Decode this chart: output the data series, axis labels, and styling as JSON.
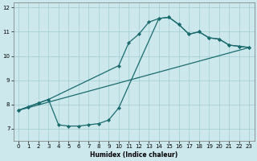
{
  "title": "",
  "xlabel": "Humidex (Indice chaleur)",
  "bg_color": "#cce8ec",
  "grid_color": "#a0ccd0",
  "line_color": "#1a6b6e",
  "xlim": [
    -0.5,
    23.5
  ],
  "ylim": [
    6.5,
    12.2
  ],
  "xticks": [
    0,
    1,
    2,
    3,
    4,
    5,
    6,
    7,
    8,
    9,
    10,
    11,
    12,
    13,
    14,
    15,
    16,
    17,
    18,
    19,
    20,
    21,
    22,
    23
  ],
  "yticks": [
    7,
    8,
    9,
    10,
    11,
    12
  ],
  "line_straight": {
    "x": [
      0,
      23
    ],
    "y": [
      7.75,
      10.35
    ]
  },
  "line_curve": {
    "x": [
      0,
      1,
      2,
      3,
      10,
      11,
      12,
      13,
      14,
      15,
      16,
      17,
      18,
      19,
      20,
      21,
      22,
      23
    ],
    "y": [
      7.75,
      7.9,
      8.05,
      8.2,
      9.6,
      10.55,
      10.9,
      11.4,
      11.55,
      11.6,
      11.3,
      10.9,
      11.0,
      10.75,
      10.7,
      10.45,
      10.4,
      10.35
    ]
  },
  "line_zigzag": {
    "x": [
      0,
      1,
      2,
      3,
      4,
      5,
      6,
      7,
      8,
      9,
      10,
      14,
      15,
      16,
      17,
      18,
      19,
      20,
      21,
      22,
      23
    ],
    "y": [
      7.75,
      7.9,
      8.05,
      8.2,
      7.15,
      7.1,
      7.1,
      7.15,
      7.2,
      7.35,
      7.85,
      11.55,
      11.6,
      11.3,
      10.9,
      11.0,
      10.75,
      10.7,
      10.45,
      10.4,
      10.35
    ]
  }
}
